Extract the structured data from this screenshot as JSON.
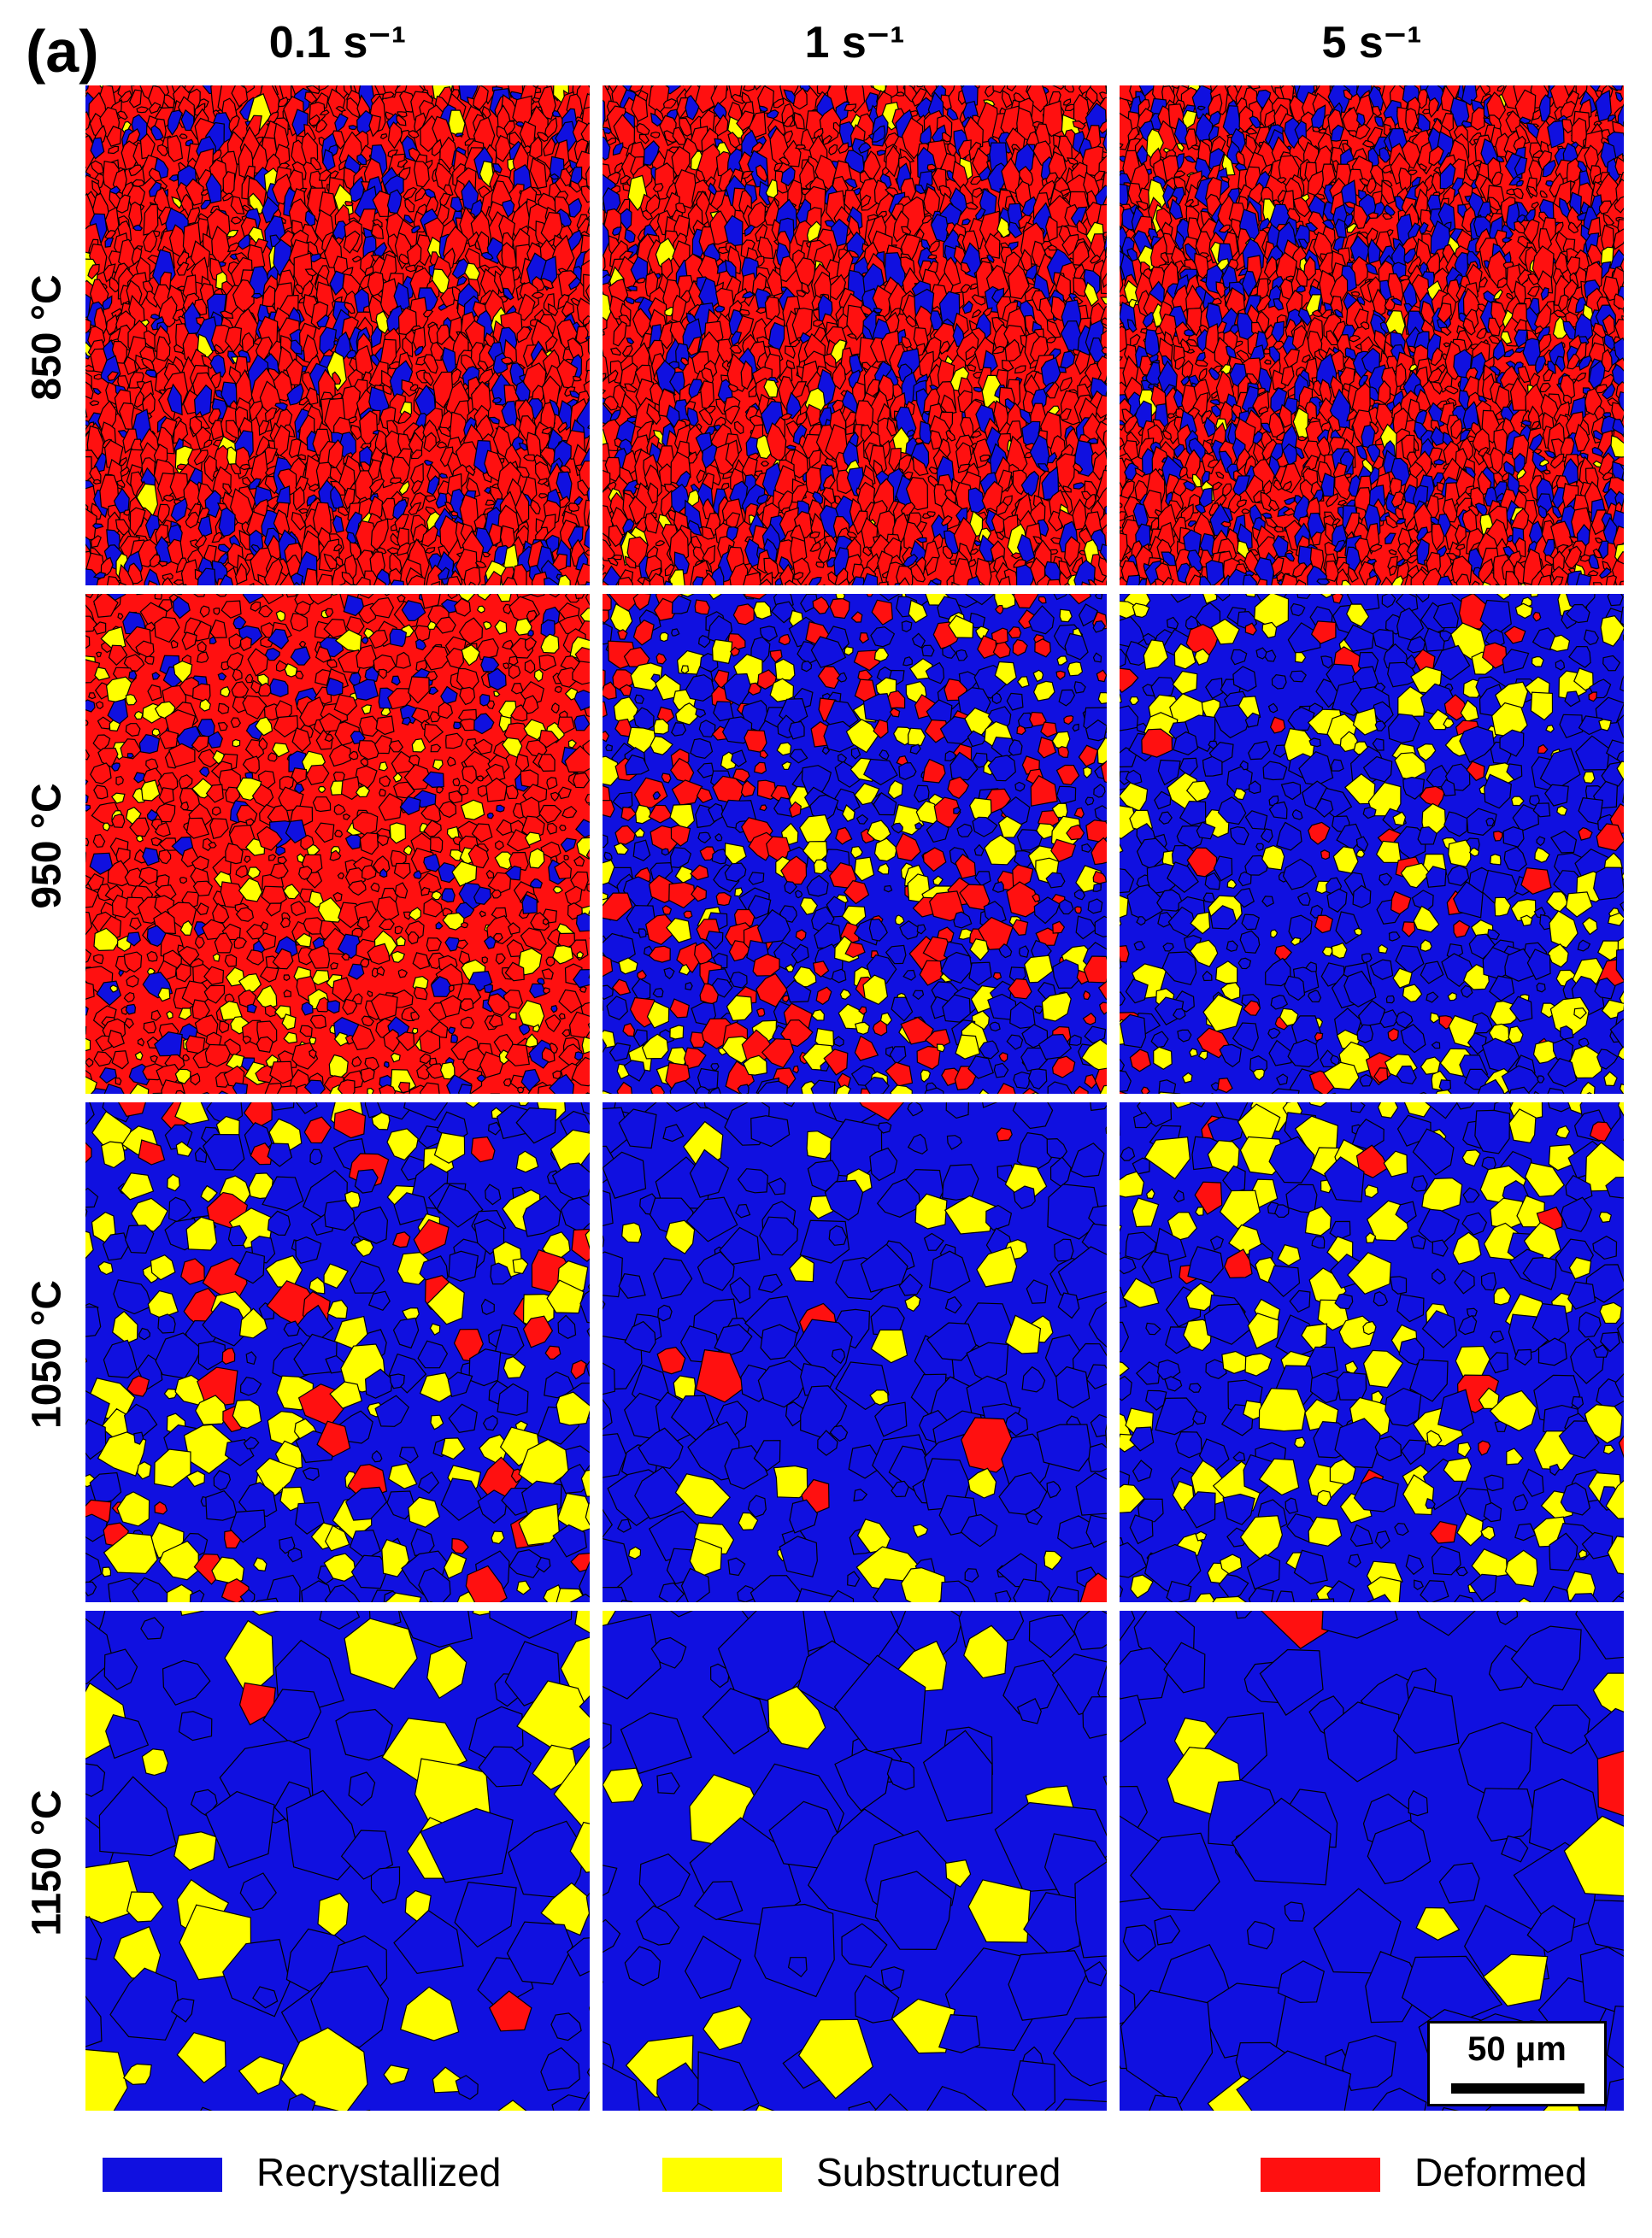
{
  "figure": {
    "panel_label": "(a)",
    "columns": [
      "0.1 s⁻¹",
      "1 s⁻¹",
      "5 s⁻¹"
    ],
    "rows": [
      "850 °C",
      "950 °C",
      "1050 °C",
      "1150 °C"
    ],
    "scale_bar": "50 μm"
  },
  "legend": [
    {
      "label": "Recrystallized",
      "color": "#1010e0"
    },
    {
      "label": "Substructured",
      "color": "#ffff00"
    },
    {
      "label": "Deformed",
      "color": "#ff1010"
    }
  ],
  "colors": {
    "recrystallized": "#1010e0",
    "substructured": "#ffff00",
    "deformed": "#ff1010",
    "boundary": "#000000"
  },
  "fractions": [
    [
      {
        "rec": 0.22,
        "sub": 0.03,
        "def": 0.75
      },
      {
        "rec": 0.25,
        "sub": 0.03,
        "def": 0.72
      },
      {
        "rec": 0.33,
        "sub": 0.04,
        "def": 0.63
      }
    ],
    [
      {
        "rec": 0.18,
        "sub": 0.17,
        "def": 0.65
      },
      {
        "rec": 0.42,
        "sub": 0.23,
        "def": 0.35
      },
      {
        "rec": 0.63,
        "sub": 0.28,
        "def": 0.09
      }
    ],
    [
      {
        "rec": 0.5,
        "sub": 0.38,
        "def": 0.12
      },
      {
        "rec": 0.78,
        "sub": 0.18,
        "def": 0.04
      },
      {
        "rec": 0.56,
        "sub": 0.4,
        "def": 0.04
      }
    ],
    [
      {
        "rec": 0.58,
        "sub": 0.41,
        "def": 0.01
      },
      {
        "rec": 0.74,
        "sub": 0.25,
        "def": 0.01
      },
      {
        "rec": 0.87,
        "sub": 0.12,
        "def": 0.01
      }
    ]
  ],
  "grain_scale": [
    [
      0.6,
      0.6,
      0.55
    ],
    [
      0.75,
      0.9,
      1.0
    ],
    [
      1.3,
      1.6,
      1.3
    ],
    [
      2.6,
      2.8,
      2.9
    ]
  ]
}
